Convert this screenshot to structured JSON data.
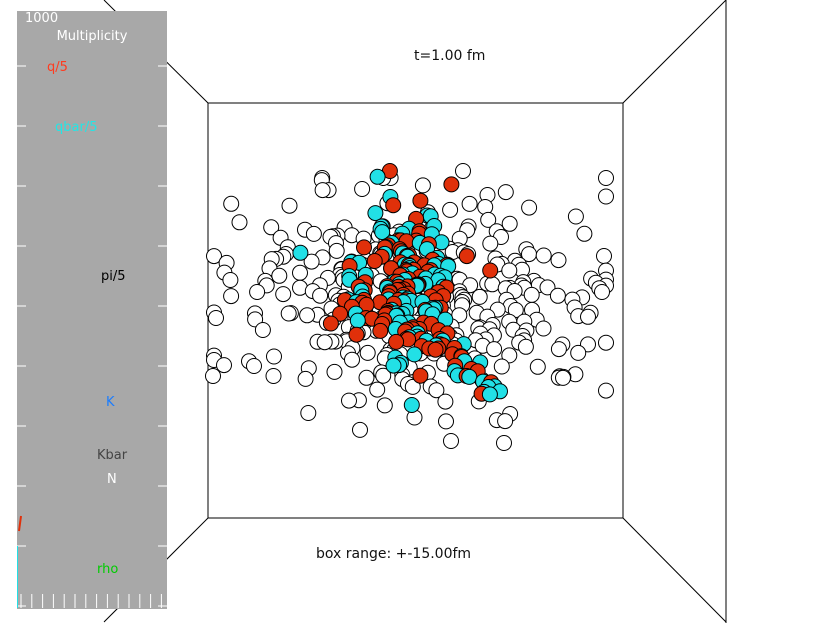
{
  "scene": {
    "time_label": "t=1.00 fm",
    "box_range_label": "box range: +-15.00fm"
  },
  "multiplicity_panel": {
    "max_label": "1000",
    "title": "Multiplicity",
    "species": [
      {
        "label": "q/5",
        "color": "#ff3b1f"
      },
      {
        "label": "qbar/5",
        "color": "#22e6e6"
      },
      {
        "label": "pi/5",
        "color": "#000000"
      },
      {
        "label": "K",
        "color": "#1a7cff"
      },
      {
        "label": "Kbar",
        "color": "#444444"
      },
      {
        "label": "N",
        "color": "#ffffff"
      },
      {
        "label": "rho",
        "color": "#00cc00"
      }
    ]
  },
  "colors": {
    "quark": "#e0300a",
    "antiquark": "#22e0e6",
    "hadron": "#ffffff",
    "outline": "#000000",
    "panel": "#a8a8a8"
  }
}
